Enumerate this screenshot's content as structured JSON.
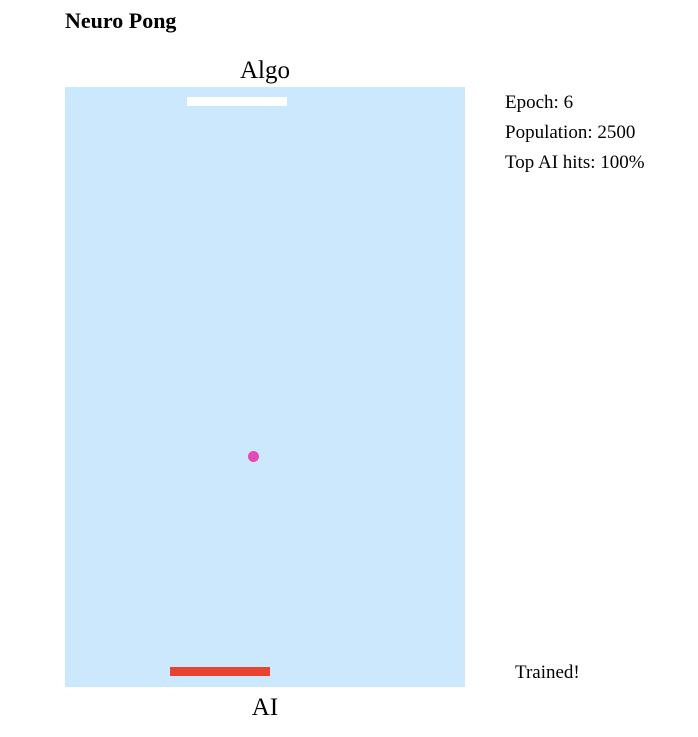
{
  "header": {
    "title": "Neuro Pong"
  },
  "game": {
    "top_player": "Algo",
    "bottom_player": "AI",
    "colors": {
      "court": "#cce8fc",
      "top_paddle": "#ffffff",
      "bottom_paddle": "#e84330",
      "ball": "#e548b9"
    }
  },
  "stats": {
    "epoch": "Epoch: 6",
    "population": "Population: 2500",
    "top_hits": "Top AI hits: 100%"
  },
  "status": {
    "text": "Trained!"
  }
}
